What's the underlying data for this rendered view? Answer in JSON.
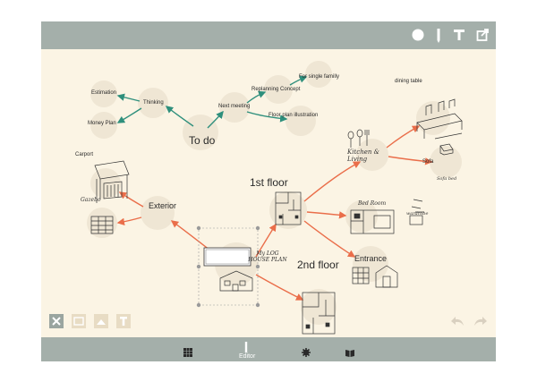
{
  "toolbar": {
    "icons": [
      "color-swatch-icon",
      "pen-icon",
      "text-icon",
      "share-icon"
    ],
    "swatch_color": "#ffffff"
  },
  "map": {
    "center_title": "My LOG HOUSE PLAN",
    "todo": {
      "title": "To do",
      "thinking": "Thinking",
      "estimation": "Estimation",
      "money_plan": "Money Plan",
      "next_meeting": "Next meeting",
      "replanning": "Replanning Concept",
      "single_family": "For single familly",
      "floor_plan": "Floor plan illustration"
    },
    "exterior": {
      "title": "Exterior",
      "carport": "Carport",
      "garden": "Gazebo"
    },
    "first_floor": {
      "title": "1st floor",
      "dining": "dining table",
      "kitchen": "Kitchen & Living",
      "sofa": "Sofa",
      "sofa_sketch": "Sofa bed",
      "bedroom": "Bed Room",
      "wardrobe": "wardrobe",
      "entrance": "Entrance"
    },
    "second_floor": {
      "title": "2nd floor"
    }
  },
  "bottom_tools": [
    "delete-icon",
    "image-icon",
    "photo-icon",
    "text-box-icon"
  ],
  "undo_redo": [
    "undo-icon",
    "redo-icon"
  ],
  "bottom_nav": {
    "editor_label": "Editor",
    "items": [
      "grid-view-icon",
      "editor-pen-icon",
      "settings-gear-icon",
      "book-icon"
    ]
  },
  "colors": {
    "bar": "#a4afaa",
    "canvas": "#fbf4e4",
    "node": "#efe6d4",
    "teal_arrow": "#2e8f7c",
    "orange_arrow": "#ea6e4a"
  }
}
